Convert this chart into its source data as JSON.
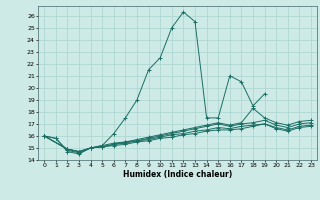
{
  "xlabel": "Humidex (Indice chaleur)",
  "background_color": "#ceeae6",
  "grid_color": "#aad4ce",
  "line_color": "#1a6e64",
  "xlim": [
    -0.5,
    23.5
  ],
  "ylim": [
    14,
    26.8
  ],
  "xticks": [
    0,
    1,
    2,
    3,
    4,
    5,
    6,
    7,
    8,
    9,
    10,
    11,
    12,
    13,
    14,
    15,
    16,
    17,
    18,
    19,
    20,
    21,
    22,
    23
  ],
  "yticks": [
    14,
    15,
    16,
    17,
    18,
    19,
    20,
    21,
    22,
    23,
    24,
    25,
    26
  ],
  "series": [
    {
      "x": [
        0,
        1,
        2,
        3,
        4,
        5,
        6,
        7,
        8,
        9,
        10,
        11,
        12,
        13,
        14,
        15,
        16,
        17,
        18,
        19
      ],
      "y": [
        16.0,
        15.8,
        14.7,
        14.5,
        15.0,
        15.2,
        16.2,
        17.5,
        19.0,
        21.5,
        22.5,
        25.0,
        26.3,
        25.5,
        17.5,
        17.5,
        21.0,
        20.5,
        18.5,
        19.5
      ]
    },
    {
      "x": [
        0,
        1,
        2,
        3,
        4,
        5,
        6,
        7,
        8,
        9,
        10,
        11,
        12,
        13,
        14,
        15,
        16,
        17,
        18,
        19,
        20,
        21,
        22,
        23
      ],
      "y": [
        16.0,
        15.8,
        14.8,
        14.6,
        15.0,
        15.2,
        15.4,
        15.5,
        15.7,
        15.9,
        16.1,
        16.3,
        16.5,
        16.7,
        16.9,
        17.1,
        16.9,
        17.1,
        18.3,
        17.5,
        17.1,
        16.9,
        17.2,
        17.3
      ]
    },
    {
      "x": [
        0,
        2,
        3,
        4,
        5,
        6,
        7,
        8,
        9,
        10,
        11,
        12,
        13,
        14,
        15,
        16,
        17,
        18,
        19,
        20,
        21,
        22,
        23
      ],
      "y": [
        16.0,
        14.9,
        14.7,
        15.0,
        15.1,
        15.3,
        15.5,
        15.6,
        15.8,
        16.0,
        16.2,
        16.4,
        16.6,
        16.8,
        17.0,
        16.8,
        17.0,
        17.1,
        17.3,
        16.9,
        16.7,
        17.0,
        17.1
      ]
    },
    {
      "x": [
        0,
        2,
        3,
        4,
        5,
        6,
        7,
        8,
        9,
        10,
        11,
        12,
        13,
        14,
        15,
        16,
        17,
        18,
        19,
        20,
        21,
        22,
        23
      ],
      "y": [
        16.0,
        14.9,
        14.7,
        15.0,
        15.1,
        15.3,
        15.4,
        15.6,
        15.7,
        15.9,
        16.1,
        16.2,
        16.4,
        16.5,
        16.7,
        16.6,
        16.8,
        16.9,
        17.0,
        16.7,
        16.5,
        16.8,
        16.9
      ]
    },
    {
      "x": [
        0,
        2,
        3,
        4,
        5,
        6,
        7,
        8,
        9,
        10,
        11,
        12,
        13,
        14,
        15,
        16,
        17,
        18,
        19,
        20,
        21,
        22,
        23
      ],
      "y": [
        16.0,
        14.9,
        14.7,
        15.0,
        15.1,
        15.2,
        15.3,
        15.5,
        15.6,
        15.8,
        15.9,
        16.1,
        16.2,
        16.4,
        16.5,
        16.5,
        16.6,
        16.8,
        17.0,
        16.6,
        16.4,
        16.7,
        16.8
      ]
    }
  ]
}
